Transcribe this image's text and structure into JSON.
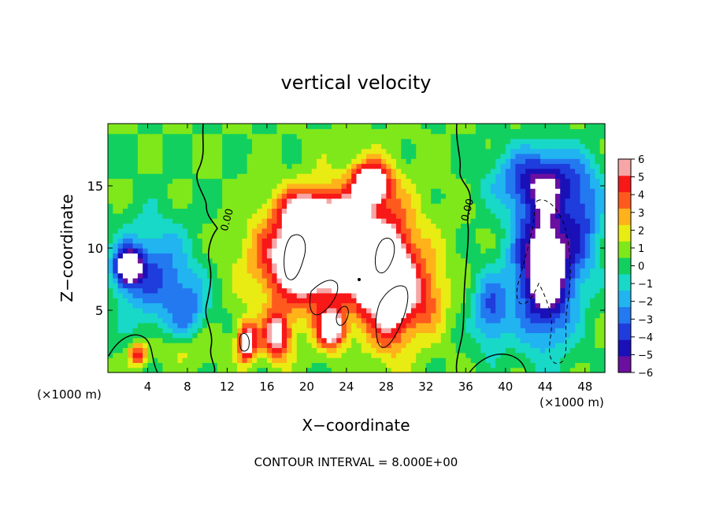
{
  "chart_data": {
    "type": "heatmap",
    "title": "vertical velocity",
    "xlabel": "X−coordinate",
    "ylabel": "Z−coordinate",
    "x_unit_left": "(×1000 m)",
    "x_unit_right": "(×1000 m)",
    "footer": "CONTOUR INTERVAL = 8.000E+00",
    "xlim": [
      0,
      50
    ],
    "ylim": [
      0,
      20
    ],
    "x_ticks": [
      4,
      8,
      12,
      16,
      20,
      24,
      28,
      32,
      36,
      40,
      44,
      48
    ],
    "y_ticks": [
      5,
      10,
      15
    ],
    "colorbar": {
      "min": -6,
      "max": 6,
      "ticks": [
        6,
        5,
        4,
        3,
        2,
        1,
        0,
        -1,
        -2,
        -3,
        -4,
        -5,
        -6
      ],
      "tick_labels": [
        "6",
        "5",
        "4",
        "3",
        "2",
        "1",
        "0",
        "−1",
        "−2",
        "−3",
        "−4",
        "−5",
        "−6"
      ]
    },
    "contour_labels": [
      {
        "text": "0.00",
        "x": 12.3,
        "y": 12.2
      },
      {
        "text": "0.00",
        "x": 36.5,
        "y": 13.0
      }
    ],
    "features": [
      {
        "kind": "updraft",
        "x": 20,
        "z": 9,
        "w": 8,
        "sx": 5,
        "sz": 3.5
      },
      {
        "kind": "updraft",
        "x": 26.5,
        "z": 15.2,
        "w": 8,
        "sx": 1.8,
        "sz": 1.6
      },
      {
        "kind": "updraft",
        "x": 24,
        "z": 11,
        "w": 6,
        "sx": 2.5,
        "sz": 2.5
      },
      {
        "kind": "updraft",
        "x": 28.5,
        "z": 7,
        "w": 8,
        "sx": 2.2,
        "sz": 4.5
      },
      {
        "kind": "updraft",
        "x": 14,
        "z": 2.5,
        "w": 7,
        "sx": 1.0,
        "sz": 1.6
      },
      {
        "kind": "updraft",
        "x": 22.5,
        "z": 3.5,
        "w": 7,
        "sx": 1.4,
        "sz": 1.5
      },
      {
        "kind": "updraft",
        "x": 25.7,
        "z": 8,
        "w": 4,
        "sx": 0.8,
        "sz": 3
      },
      {
        "kind": "updraft",
        "x": 17,
        "z": 3,
        "w": 6,
        "sx": 1.5,
        "sz": 2
      },
      {
        "kind": "updraft",
        "x": 20,
        "z": 13,
        "w": 5,
        "sx": 3,
        "sz": 2
      },
      {
        "kind": "updraft",
        "x": 26,
        "z": 10,
        "w": 3,
        "sx": 6,
        "sz": 6
      },
      {
        "kind": "updraft",
        "x": 32,
        "z": 6,
        "w": 3,
        "sx": 2,
        "sz": 3
      },
      {
        "kind": "downdraft",
        "x": 44,
        "z": 8.5,
        "w": -9,
        "sx": 3.0,
        "sz": 5.5
      },
      {
        "kind": "downdraft",
        "x": 43.5,
        "z": 15.5,
        "w": -5,
        "sx": 4.5,
        "sz": 2.5
      },
      {
        "kind": "downdraft",
        "x": 2,
        "z": 8.5,
        "w": -8,
        "sx": 1.3,
        "sz": 1.5
      },
      {
        "kind": "downdraft",
        "x": 4.5,
        "z": 8,
        "w": -4,
        "sx": 3.5,
        "sz": 4
      },
      {
        "kind": "downdraft",
        "x": 8,
        "z": 5,
        "w": -3,
        "sx": 2,
        "sz": 3
      },
      {
        "kind": "downdraft",
        "x": 38.5,
        "z": 5,
        "w": -4,
        "sx": 1.8,
        "sz": 3
      },
      {
        "kind": "downdraft",
        "x": 48,
        "z": 12,
        "w": -3,
        "sx": 2,
        "sz": 4
      },
      {
        "kind": "updraft",
        "x": 3,
        "z": 1.5,
        "w": 5,
        "sx": 0.9,
        "sz": 0.9
      },
      {
        "kind": "updraft",
        "x": 8,
        "z": 2,
        "w": 2,
        "sx": 3,
        "sz": 1.5
      }
    ]
  }
}
